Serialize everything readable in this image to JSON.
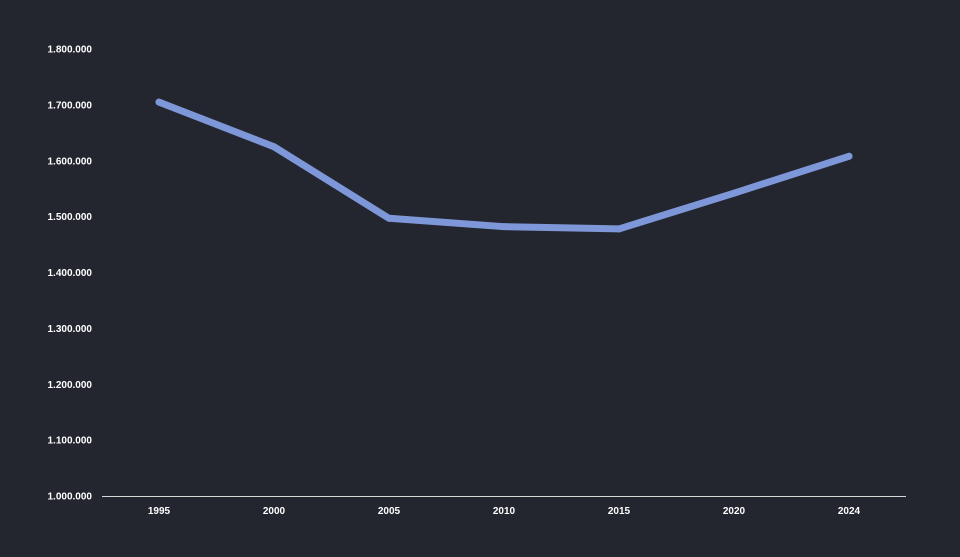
{
  "chart_data": {
    "type": "line",
    "title": "",
    "xlabel": "",
    "ylabel": "",
    "x": [
      "1995",
      "2000",
      "2005",
      "2010",
      "2015",
      "2020",
      "2024"
    ],
    "series": [
      {
        "values": [
          1705000,
          1625000,
          1497000,
          1482000,
          1478000,
          1542000,
          1608000
        ]
      }
    ],
    "ylim": [
      1000000,
      1800000
    ],
    "yticks": [
      1000000,
      1100000,
      1200000,
      1300000,
      1400000,
      1500000,
      1600000,
      1700000,
      1800000
    ],
    "ytick_labels": [
      "1.000.000",
      "1.100.000",
      "1.200.000",
      "1.300.000",
      "1.400.000",
      "1.500.000",
      "1.600.000",
      "1.700.000",
      "1.800.000"
    ],
    "grid": false,
    "legend": "none",
    "colors": {
      "background": "#23252f",
      "line": "#7e97d8",
      "axis": "#d8d8d8",
      "text": "#ffffff"
    }
  }
}
